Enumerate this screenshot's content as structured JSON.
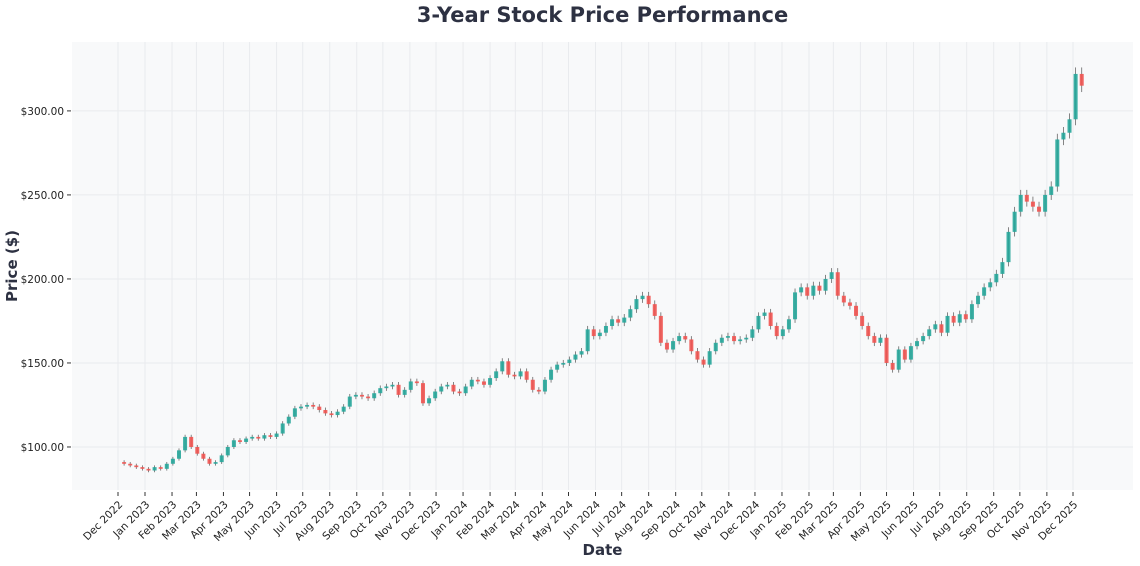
{
  "chart_data": {
    "type": "candlestick",
    "title": "3-Year Stock Price Performance",
    "xlabel": "Date",
    "ylabel": "Price ($)",
    "ylim": [
      74.4,
      341
    ],
    "y_ticks": [
      100,
      150,
      200,
      250,
      300
    ],
    "y_tick_labels": [
      "$100.00",
      "$150.00",
      "$200.00",
      "$250.00",
      "$300.00"
    ],
    "x_tick_labels": [
      "Dec 2022",
      "Jan 2023",
      "Feb 2023",
      "Mar 2023",
      "Apr 2023",
      "May 2023",
      "Jun 2023",
      "Jul 2023",
      "Aug 2023",
      "Sep 2023",
      "Oct 2023",
      "Nov 2023",
      "Dec 2023",
      "Jan 2024",
      "Feb 2024",
      "Mar 2024",
      "Apr 2024",
      "May 2024",
      "Jun 2024",
      "Jul 2024",
      "Aug 2024",
      "Sep 2024",
      "Oct 2024",
      "Nov 2024",
      "Dec 2024",
      "Jan 2025",
      "Feb 2025",
      "Mar 2025",
      "Apr 2025",
      "May 2025",
      "Jun 2025",
      "Jul 2025",
      "Aug 2025",
      "Sep 2025",
      "Oct 2025",
      "Nov 2025",
      "Dec 2025"
    ],
    "grid": true,
    "colors": {
      "up": "#26a69a",
      "down": "#ef5350",
      "plot_bg": "#f8f9fa",
      "title": "#2d3142"
    },
    "first_open": 91,
    "weekly_close": [
      {
        "m": "2022-12",
        "d": [
          5,
          12,
          19,
          26
        ],
        "c": [
          90,
          89,
          88,
          87
        ]
      },
      {
        "m": "2023-01",
        "d": [
          2,
          9,
          16,
          23,
          30
        ],
        "c": [
          86,
          88,
          87,
          90,
          93
        ]
      },
      {
        "m": "2023-02",
        "d": [
          6,
          13,
          20,
          27
        ],
        "c": [
          98,
          106,
          100,
          96
        ]
      },
      {
        "m": "2023-03",
        "d": [
          6,
          13,
          20,
          27
        ],
        "c": [
          93,
          90,
          91,
          95
        ]
      },
      {
        "m": "2023-04",
        "d": [
          3,
          10,
          17,
          24
        ],
        "c": [
          100,
          104,
          103,
          105
        ]
      },
      {
        "m": "2023-05",
        "d": [
          1,
          8,
          15,
          22,
          29
        ],
        "c": [
          106,
          105,
          107,
          106,
          108
        ]
      },
      {
        "m": "2023-06",
        "d": [
          5,
          12,
          19,
          26
        ],
        "c": [
          114,
          118,
          123,
          124
        ]
      },
      {
        "m": "2023-07",
        "d": [
          3,
          10,
          17,
          24,
          31
        ],
        "c": [
          125,
          124,
          122,
          120,
          119
        ]
      },
      {
        "m": "2023-08",
        "d": [
          7,
          14,
          21,
          28
        ],
        "c": [
          121,
          124,
          130,
          131
        ]
      },
      {
        "m": "2023-09",
        "d": [
          4,
          11,
          18,
          25
        ],
        "c": [
          130,
          129,
          132,
          135
        ]
      },
      {
        "m": "2023-10",
        "d": [
          2,
          9,
          16,
          23,
          30
        ],
        "c": [
          136,
          137,
          131,
          134,
          139
        ]
      },
      {
        "m": "2023-11",
        "d": [
          6,
          13,
          20,
          27
        ],
        "c": [
          138,
          126,
          129,
          133
        ]
      },
      {
        "m": "2023-12",
        "d": [
          4,
          11,
          18,
          25
        ],
        "c": [
          136,
          137,
          133,
          132
        ]
      },
      {
        "m": "2024-01",
        "d": [
          1,
          8,
          15,
          22,
          29
        ],
        "c": [
          136,
          140,
          139,
          137,
          141
        ]
      },
      {
        "m": "2024-02",
        "d": [
          5,
          12,
          19,
          26
        ],
        "c": [
          145,
          151,
          143,
          142
        ]
      },
      {
        "m": "2024-03",
        "d": [
          4,
          11,
          18,
          25
        ],
        "c": [
          145,
          140,
          134,
          133
        ]
      },
      {
        "m": "2024-04",
        "d": [
          1,
          8,
          15,
          22,
          29
        ],
        "c": [
          140,
          146,
          149,
          150,
          152
        ]
      },
      {
        "m": "2024-05",
        "d": [
          6,
          13,
          20,
          27
        ],
        "c": [
          155,
          157,
          170,
          166
        ]
      },
      {
        "m": "2024-06",
        "d": [
          3,
          10,
          17,
          24
        ],
        "c": [
          168,
          172,
          176,
          174
        ]
      },
      {
        "m": "2024-07",
        "d": [
          1,
          8,
          15,
          22,
          29
        ],
        "c": [
          177,
          182,
          188,
          190,
          185
        ]
      },
      {
        "m": "2024-08",
        "d": [
          5,
          12,
          19,
          26
        ],
        "c": [
          178,
          162,
          158,
          163
        ]
      },
      {
        "m": "2024-09",
        "d": [
          2,
          9,
          16,
          23,
          30
        ],
        "c": [
          166,
          164,
          157,
          152,
          149
        ]
      },
      {
        "m": "2024-10",
        "d": [
          7,
          14,
          21,
          28
        ],
        "c": [
          157,
          162,
          165,
          166
        ]
      },
      {
        "m": "2024-11",
        "d": [
          4,
          11,
          18,
          25
        ],
        "c": [
          163,
          164,
          165,
          170
        ]
      },
      {
        "m": "2024-12",
        "d": [
          2,
          9,
          16,
          23,
          30
        ],
        "c": [
          178,
          180,
          172,
          166,
          170
        ]
      },
      {
        "m": "2025-01",
        "d": [
          6,
          13,
          20,
          27
        ],
        "c": [
          176,
          192,
          195,
          190
        ]
      },
      {
        "m": "2025-02",
        "d": [
          3,
          10,
          17,
          24
        ],
        "c": [
          196,
          193,
          200,
          204
        ]
      },
      {
        "m": "2025-03",
        "d": [
          3,
          10,
          17,
          24,
          31
        ],
        "c": [
          190,
          186,
          184,
          178,
          172
        ]
      },
      {
        "m": "2025-04",
        "d": [
          7,
          14,
          21,
          28
        ],
        "c": [
          166,
          162,
          165,
          150
        ]
      },
      {
        "m": "2025-05",
        "d": [
          5,
          12,
          19,
          26
        ],
        "c": [
          146,
          158,
          152,
          160
        ]
      },
      {
        "m": "2025-06",
        "d": [
          2,
          9,
          16,
          23,
          30
        ],
        "c": [
          163,
          166,
          170,
          173,
          168
        ]
      },
      {
        "m": "2025-07",
        "d": [
          7,
          14,
          21,
          28
        ],
        "c": [
          178,
          174,
          179,
          176
        ]
      },
      {
        "m": "2025-08",
        "d": [
          4,
          11,
          18,
          25
        ],
        "c": [
          185,
          190,
          195,
          198
        ]
      },
      {
        "m": "2025-09",
        "d": [
          1,
          8,
          15,
          22,
          29
        ],
        "c": [
          203,
          210,
          228,
          240,
          250
        ]
      },
      {
        "m": "2025-10",
        "d": [
          6,
          13,
          20,
          27
        ],
        "c": [
          246,
          243,
          240,
          250
        ]
      },
      {
        "m": "2025-11",
        "d": [
          3,
          10,
          17,
          24
        ],
        "c": [
          255,
          283,
          287,
          295
        ]
      },
      {
        "m": "2025-12",
        "d": [
          1,
          8
        ],
        "c": [
          322,
          315
        ]
      }
    ]
  }
}
